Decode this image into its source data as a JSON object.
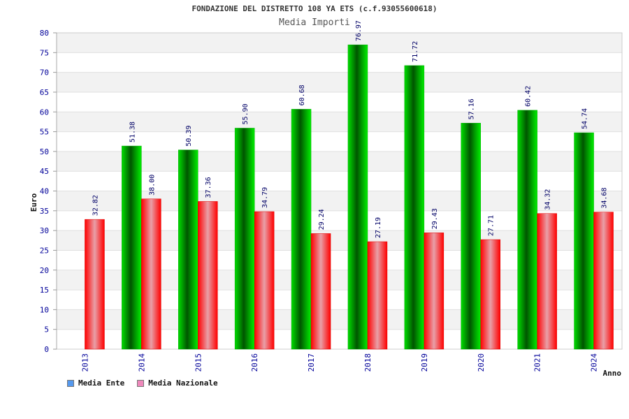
{
  "title": "FONDAZIONE DEL DISTRETTO 108 YA ETS (c.f.93055600618)",
  "subtitle": "Media Importi",
  "colors": {
    "ente": "#00cc00",
    "ente_dark": "#006600",
    "nazionale": "#ff0000",
    "nazionale_light": "#e8a0a8",
    "axis_text": "#000099",
    "band": "#f2f2f2",
    "legend_ente": "#5599ee",
    "legend_nazionale": "#ee88bb"
  },
  "chart_data": {
    "type": "bar",
    "xlabel": "Anno",
    "ylabel": "Euro",
    "ylim": [
      0,
      80
    ],
    "yticks": [
      0,
      5,
      10,
      15,
      20,
      25,
      30,
      35,
      40,
      45,
      50,
      55,
      60,
      65,
      70,
      75,
      80
    ],
    "categories": [
      "2013",
      "2014",
      "2015",
      "2016",
      "2017",
      "2018",
      "2019",
      "2020",
      "2021",
      "2024"
    ],
    "series": [
      {
        "name": "Media Ente",
        "values": [
          null,
          51.38,
          50.39,
          55.9,
          60.68,
          76.97,
          71.72,
          57.16,
          60.42,
          54.74
        ],
        "labels": [
          "",
          "51.38",
          "50.39",
          "55.90",
          "60.68",
          "76.97",
          "71.72",
          "57.16",
          "60.42",
          "54.74"
        ]
      },
      {
        "name": "Media Nazionale",
        "values": [
          32.82,
          38.0,
          37.36,
          34.79,
          29.24,
          27.19,
          29.43,
          27.71,
          34.32,
          34.68
        ],
        "labels": [
          "32.82",
          "38.00",
          "37.36",
          "34.79",
          "29.24",
          "27.19",
          "29.43",
          "27.71",
          "34.32",
          "34.68"
        ]
      }
    ],
    "grid": true,
    "legend_position": "bottom-left"
  }
}
